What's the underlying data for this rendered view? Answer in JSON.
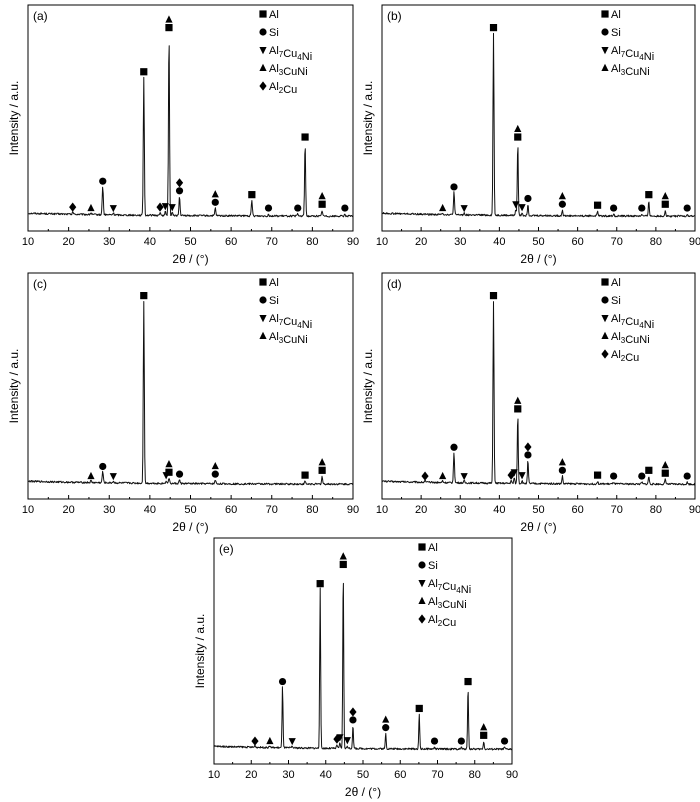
{
  "chart_data": [
    {
      "type": "line",
      "panel_label": "(a)",
      "xlabel": "2θ / (°)",
      "ylabel": "Intensity / a.u.",
      "xlim": [
        10,
        90
      ],
      "ylim": [
        0,
        100
      ],
      "xticks": [
        10,
        20,
        30,
        40,
        50,
        60,
        70,
        80,
        90
      ],
      "legend": [
        "Al",
        "Si",
        "Al7Cu4Ni",
        "Al3CuNi",
        "Al2Cu"
      ],
      "peaks": [
        {
          "x": 21.0,
          "y": 1.5,
          "markers": [
            "diamond"
          ]
        },
        {
          "x": 25.5,
          "y": 1.0,
          "markers": [
            "triangle"
          ]
        },
        {
          "x": 28.4,
          "y": 15,
          "markers": [
            "circle"
          ]
        },
        {
          "x": 31.0,
          "y": 1.0,
          "markers": [
            "inv-triangle"
          ]
        },
        {
          "x": 38.5,
          "y": 72,
          "markers": [
            "square"
          ]
        },
        {
          "x": 42.5,
          "y": 1.5,
          "markers": [
            "diamond"
          ]
        },
        {
          "x": 43.8,
          "y": 2.0,
          "markers": [
            "inv-triangle"
          ]
        },
        {
          "x": 44.7,
          "y": 95,
          "markers": [
            "square",
            "triangle"
          ]
        },
        {
          "x": 45.5,
          "y": 1.5,
          "markers": [
            "inv-triangle"
          ]
        },
        {
          "x": 47.3,
          "y": 10,
          "markers": [
            "circle",
            "diamond"
          ]
        },
        {
          "x": 56.1,
          "y": 4,
          "markers": [
            "circle",
            "triangle"
          ]
        },
        {
          "x": 65.1,
          "y": 8,
          "markers": [
            "square"
          ]
        },
        {
          "x": 69.2,
          "y": 1.0,
          "markers": [
            "circle"
          ]
        },
        {
          "x": 76.4,
          "y": 1.0,
          "markers": [
            "circle"
          ]
        },
        {
          "x": 78.2,
          "y": 38,
          "markers": [
            "square"
          ]
        },
        {
          "x": 82.4,
          "y": 3,
          "markers": [
            "square",
            "triangle"
          ]
        },
        {
          "x": 88.0,
          "y": 1.0,
          "markers": [
            "circle"
          ]
        }
      ]
    },
    {
      "type": "line",
      "panel_label": "(b)",
      "xlabel": "2θ / (°)",
      "ylabel": "Intensity / a.u.",
      "xlim": [
        10,
        90
      ],
      "ylim": [
        0,
        100
      ],
      "xticks": [
        10,
        20,
        30,
        40,
        50,
        60,
        70,
        80,
        90
      ],
      "legend": [
        "Al",
        "Si",
        "Al7Cu4Ni",
        "Al3CuNi"
      ],
      "peaks": [
        {
          "x": 25.5,
          "y": 1.0,
          "markers": [
            "triangle"
          ]
        },
        {
          "x": 28.4,
          "y": 12,
          "markers": [
            "circle"
          ]
        },
        {
          "x": 31.0,
          "y": 1.0,
          "markers": [
            "inv-triangle"
          ]
        },
        {
          "x": 38.5,
          "y": 95,
          "markers": [
            "square"
          ]
        },
        {
          "x": 44.2,
          "y": 3,
          "markers": [
            "inv-triangle"
          ]
        },
        {
          "x": 44.7,
          "y": 38,
          "markers": [
            "square",
            "triangle"
          ]
        },
        {
          "x": 45.8,
          "y": 1.5,
          "markers": [
            "inv-triangle"
          ]
        },
        {
          "x": 47.3,
          "y": 6,
          "markers": [
            "circle"
          ]
        },
        {
          "x": 56.1,
          "y": 3,
          "markers": [
            "circle",
            "triangle"
          ]
        },
        {
          "x": 65.1,
          "y": 2.5,
          "markers": [
            "square"
          ]
        },
        {
          "x": 69.2,
          "y": 1.0,
          "markers": [
            "circle"
          ]
        },
        {
          "x": 76.4,
          "y": 1.0,
          "markers": [
            "circle"
          ]
        },
        {
          "x": 78.2,
          "y": 8,
          "markers": [
            "square"
          ]
        },
        {
          "x": 82.4,
          "y": 3,
          "markers": [
            "square",
            "triangle"
          ]
        },
        {
          "x": 88.0,
          "y": 1.0,
          "markers": [
            "circle"
          ]
        }
      ]
    },
    {
      "type": "line",
      "panel_label": "(c)",
      "xlabel": "2θ / (°)",
      "ylabel": "Intensity / a.u.",
      "xlim": [
        10,
        90
      ],
      "ylim": [
        0,
        100
      ],
      "xticks": [
        10,
        20,
        30,
        40,
        50,
        60,
        70,
        80,
        90
      ],
      "legend": [
        "Al",
        "Si",
        "Al7Cu4Ni",
        "Al3CuNi"
      ],
      "peaks": [
        {
          "x": 25.5,
          "y": 1.0,
          "markers": [
            "triangle"
          ]
        },
        {
          "x": 28.4,
          "y": 6,
          "markers": [
            "circle"
          ]
        },
        {
          "x": 31.0,
          "y": 1.0,
          "markers": [
            "inv-triangle"
          ]
        },
        {
          "x": 38.5,
          "y": 95,
          "markers": [
            "square"
          ]
        },
        {
          "x": 44.0,
          "y": 1.5,
          "markers": [
            "inv-triangle"
          ]
        },
        {
          "x": 44.7,
          "y": 3,
          "markers": [
            "square",
            "triangle"
          ]
        },
        {
          "x": 47.3,
          "y": 2,
          "markers": [
            "circle"
          ]
        },
        {
          "x": 56.1,
          "y": 2,
          "markers": [
            "circle",
            "triangle"
          ]
        },
        {
          "x": 78.2,
          "y": 1.5,
          "markers": [
            "square"
          ]
        },
        {
          "x": 82.4,
          "y": 4,
          "markers": [
            "square",
            "triangle"
          ]
        }
      ]
    },
    {
      "type": "line",
      "panel_label": "(d)",
      "xlabel": "2θ / (°)",
      "ylabel": "Intensity / a.u.",
      "xlim": [
        10,
        90
      ],
      "ylim": [
        0,
        100
      ],
      "xticks": [
        10,
        20,
        30,
        40,
        50,
        60,
        70,
        80,
        90
      ],
      "legend": [
        "Al",
        "Si",
        "Al7Cu4Ni",
        "Al3CuNi",
        "Al2Cu"
      ],
      "peaks": [
        {
          "x": 21.0,
          "y": 1.0,
          "markers": [
            "diamond"
          ]
        },
        {
          "x": 25.5,
          "y": 1.0,
          "markers": [
            "triangle"
          ]
        },
        {
          "x": 28.4,
          "y": 16,
          "markers": [
            "circle"
          ]
        },
        {
          "x": 31.0,
          "y": 1.0,
          "markers": [
            "inv-triangle"
          ]
        },
        {
          "x": 38.5,
          "y": 95,
          "markers": [
            "square"
          ]
        },
        {
          "x": 43.0,
          "y": 1.5,
          "markers": [
            "diamond"
          ]
        },
        {
          "x": 43.8,
          "y": 3,
          "markers": [
            "inv-triangle"
          ]
        },
        {
          "x": 44.7,
          "y": 36,
          "markers": [
            "square",
            "triangle"
          ]
        },
        {
          "x": 45.8,
          "y": 1.5,
          "markers": [
            "inv-triangle"
          ]
        },
        {
          "x": 47.3,
          "y": 12,
          "markers": [
            "circle",
            "diamond"
          ]
        },
        {
          "x": 56.1,
          "y": 4,
          "markers": [
            "circle",
            "triangle"
          ]
        },
        {
          "x": 65.1,
          "y": 1.5,
          "markers": [
            "square"
          ]
        },
        {
          "x": 69.2,
          "y": 1.0,
          "markers": [
            "circle"
          ]
        },
        {
          "x": 76.4,
          "y": 1.0,
          "markers": [
            "circle"
          ]
        },
        {
          "x": 78.2,
          "y": 4,
          "markers": [
            "square"
          ]
        },
        {
          "x": 82.4,
          "y": 2.5,
          "markers": [
            "square",
            "triangle"
          ]
        },
        {
          "x": 88.0,
          "y": 1.0,
          "markers": [
            "circle"
          ]
        }
      ]
    },
    {
      "type": "line",
      "panel_label": "(e)",
      "xlabel": "2θ / (°)",
      "ylabel": "Intensity / a.u.",
      "xlim": [
        10,
        90
      ],
      "ylim": [
        0,
        100
      ],
      "xticks": [
        10,
        20,
        30,
        40,
        50,
        60,
        70,
        80,
        90
      ],
      "legend": [
        "Al",
        "Si",
        "Al7Cu4Ni",
        "Al3CuNi",
        "Al2Cu"
      ],
      "peaks": [
        {
          "x": 21.0,
          "y": 1.0,
          "markers": [
            "diamond"
          ]
        },
        {
          "x": 25.0,
          "y": 1.0,
          "markers": [
            "triangle"
          ]
        },
        {
          "x": 28.4,
          "y": 32,
          "markers": [
            "circle"
          ]
        },
        {
          "x": 31.0,
          "y": 1.0,
          "markers": [
            "inv-triangle"
          ]
        },
        {
          "x": 38.5,
          "y": 83,
          "markers": [
            "square"
          ]
        },
        {
          "x": 43.0,
          "y": 2,
          "markers": [
            "diamond"
          ]
        },
        {
          "x": 43.8,
          "y": 3,
          "markers": [
            "inv-triangle"
          ]
        },
        {
          "x": 44.7,
          "y": 93,
          "markers": [
            "square",
            "triangle"
          ]
        },
        {
          "x": 45.8,
          "y": 1.5,
          "markers": [
            "inv-triangle"
          ]
        },
        {
          "x": 47.3,
          "y": 12,
          "markers": [
            "circle",
            "diamond"
          ]
        },
        {
          "x": 56.1,
          "y": 8,
          "markers": [
            "circle",
            "triangle"
          ]
        },
        {
          "x": 65.1,
          "y": 18,
          "markers": [
            "square"
          ]
        },
        {
          "x": 69.2,
          "y": 1.0,
          "markers": [
            "circle"
          ]
        },
        {
          "x": 76.4,
          "y": 1.0,
          "markers": [
            "circle"
          ]
        },
        {
          "x": 78.2,
          "y": 32,
          "markers": [
            "square"
          ]
        },
        {
          "x": 82.4,
          "y": 4,
          "markers": [
            "square",
            "triangle"
          ]
        },
        {
          "x": 88.0,
          "y": 1.0,
          "markers": [
            "circle"
          ]
        }
      ]
    }
  ]
}
